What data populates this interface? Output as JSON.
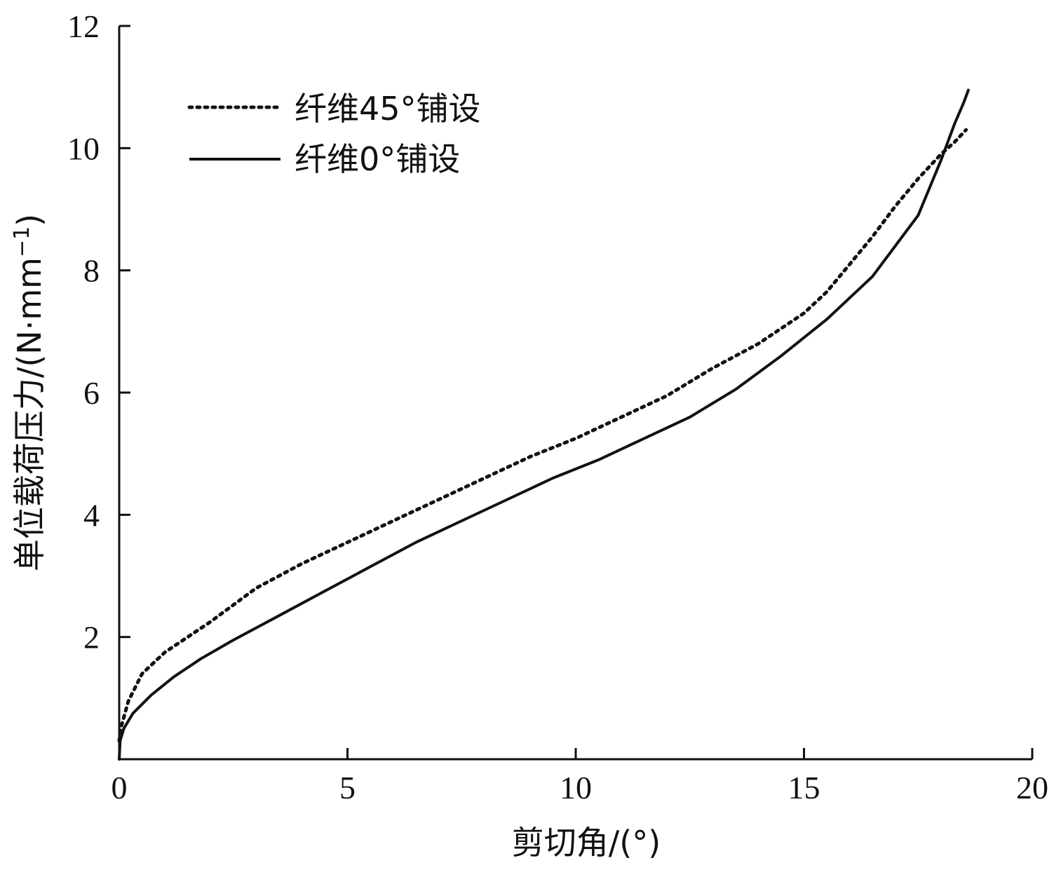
{
  "chart_data": {
    "type": "line",
    "title": "",
    "xlabel": "剪切角/(°)",
    "ylabel_main": "单位载荷压力/(N·mm",
    "ylabel_sup": "−1",
    "ylabel_end": ")",
    "xlim": [
      0,
      20
    ],
    "ylim": [
      0,
      12
    ],
    "xticks": [
      0,
      5,
      10,
      15,
      20
    ],
    "yticks": [
      2,
      4,
      6,
      8,
      10,
      12
    ],
    "xtick_labels": [
      "0",
      "5",
      "10",
      "15",
      "20"
    ],
    "ytick_labels": [
      "2",
      "4",
      "6",
      "8",
      "10",
      "12"
    ],
    "grid": false,
    "legend_position": "top-left",
    "series": [
      {
        "name": "纤维45°铺设",
        "style": "dotted",
        "x": [
          0,
          0.05,
          0.2,
          0.5,
          1.0,
          2.0,
          3.0,
          4.0,
          5.0,
          6.0,
          7.0,
          8.0,
          9.0,
          10.0,
          11.0,
          12.0,
          13.0,
          14.0,
          15.0,
          15.5,
          16.0,
          16.5,
          17.0,
          17.5,
          18.0,
          18.3,
          18.55
        ],
        "y": [
          0.3,
          0.55,
          0.95,
          1.4,
          1.75,
          2.25,
          2.8,
          3.2,
          3.55,
          3.9,
          4.25,
          4.6,
          4.95,
          5.25,
          5.6,
          5.95,
          6.4,
          6.8,
          7.3,
          7.65,
          8.1,
          8.55,
          9.05,
          9.5,
          9.9,
          10.1,
          10.3
        ]
      },
      {
        "name": "纤维0°铺设",
        "style": "solid",
        "x": [
          0,
          0.02,
          0.1,
          0.3,
          0.7,
          1.2,
          1.8,
          2.5,
          3.5,
          4.5,
          5.5,
          6.5,
          7.5,
          8.5,
          9.5,
          10.5,
          11.5,
          12.5,
          13.5,
          14.5,
          15.5,
          16.5,
          17.5,
          18.0,
          18.3,
          18.5,
          18.6
        ],
        "y": [
          0,
          0.3,
          0.5,
          0.75,
          1.05,
          1.35,
          1.65,
          1.95,
          2.35,
          2.75,
          3.15,
          3.55,
          3.9,
          4.25,
          4.6,
          4.9,
          5.25,
          5.6,
          6.05,
          6.6,
          7.2,
          7.9,
          8.9,
          9.8,
          10.4,
          10.75,
          10.95
        ]
      }
    ]
  }
}
